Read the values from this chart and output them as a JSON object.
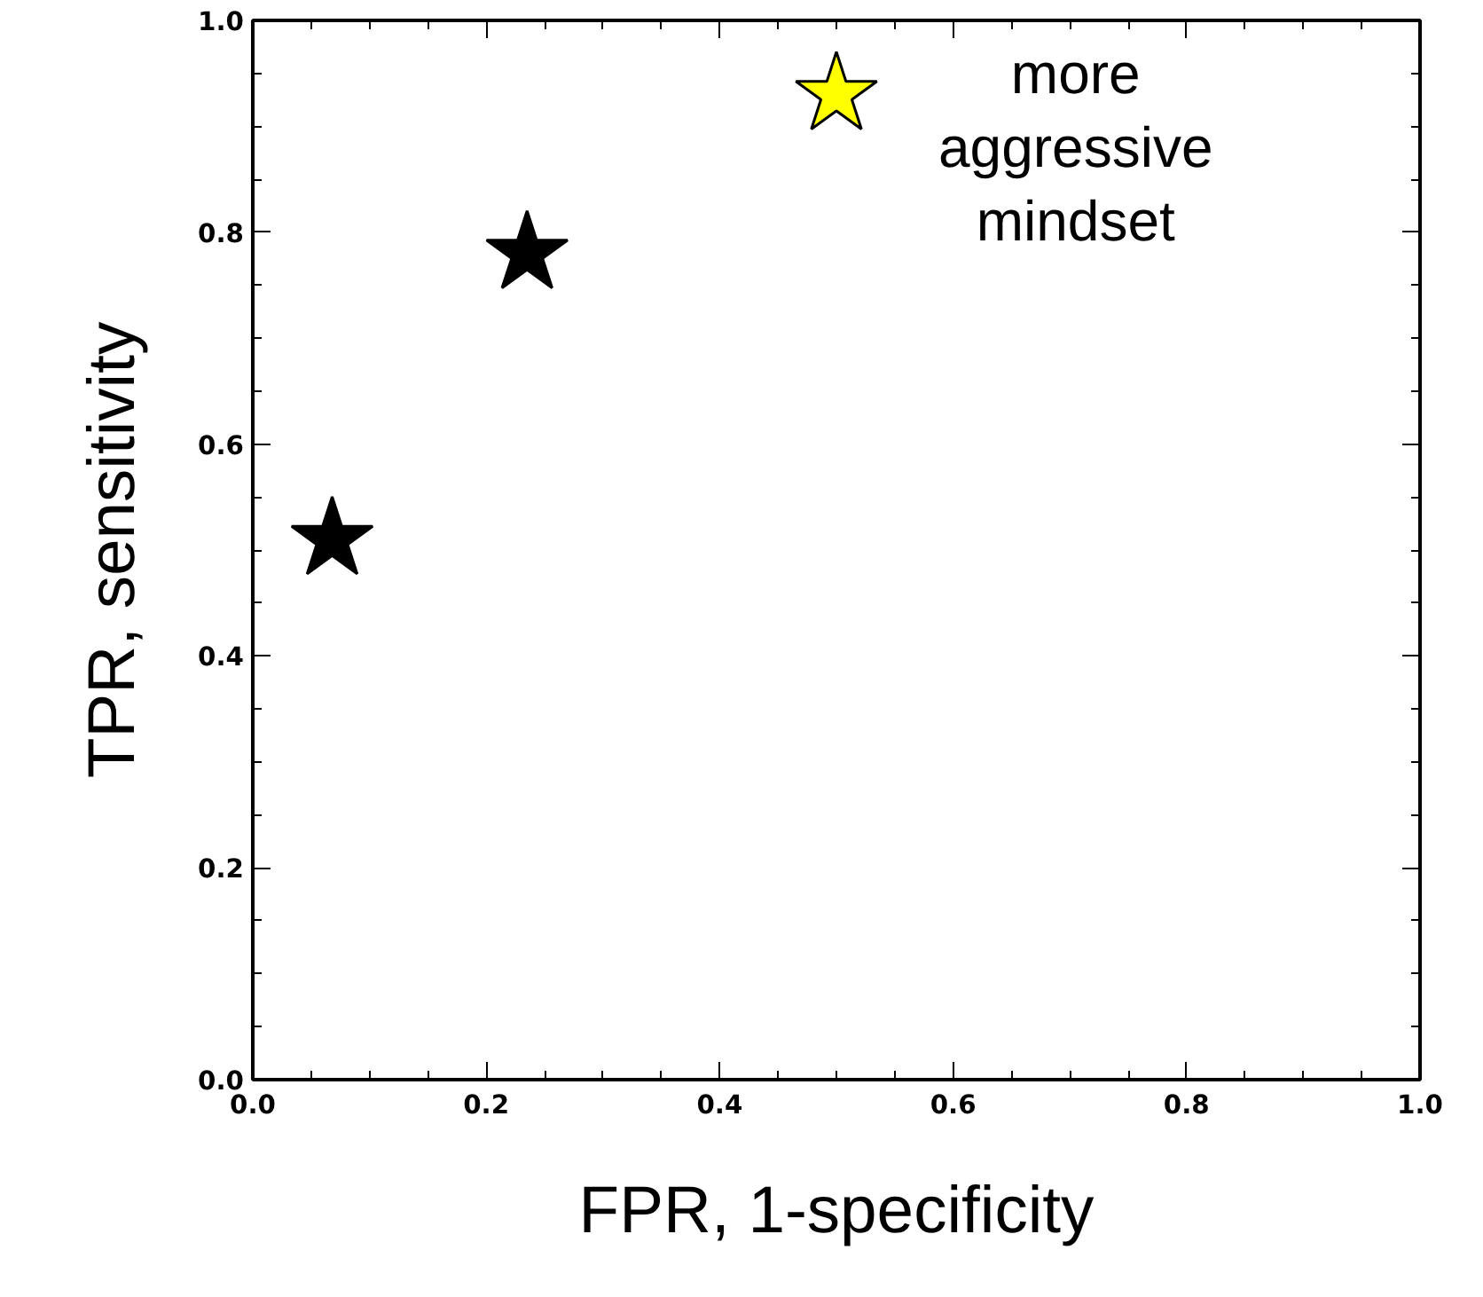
{
  "chart_data": {
    "type": "scatter",
    "xlabel": "FPR, 1-specificity",
    "ylabel": "TPR, sensitivity",
    "x": [
      0.068,
      0.235,
      0.5
    ],
    "values": [
      0.51,
      0.78,
      0.93
    ],
    "colors": [
      "#000000",
      "#000000",
      "#ffff00"
    ],
    "marker": "star",
    "xlim": [
      0,
      1
    ],
    "ylim": [
      0,
      1
    ],
    "xticks": [
      {
        "value": 0,
        "label": "0.0"
      },
      {
        "value": 0.2,
        "label": "0.2"
      },
      {
        "value": 0.4,
        "label": "0.4"
      },
      {
        "value": 0.6,
        "label": "0.6"
      },
      {
        "value": 0.8,
        "label": "0.8"
      },
      {
        "value": 1,
        "label": "1.0"
      }
    ],
    "yticks": [
      {
        "value": 0,
        "label": "0.0"
      },
      {
        "value": 0.2,
        "label": "0.2"
      },
      {
        "value": 0.4,
        "label": "0.4"
      },
      {
        "value": 0.6,
        "label": "0.6"
      },
      {
        "value": 0.8,
        "label": "0.8"
      },
      {
        "value": 1,
        "label": "1.0"
      }
    ],
    "annotations": [
      "more\naggressive\nmindset"
    ]
  }
}
